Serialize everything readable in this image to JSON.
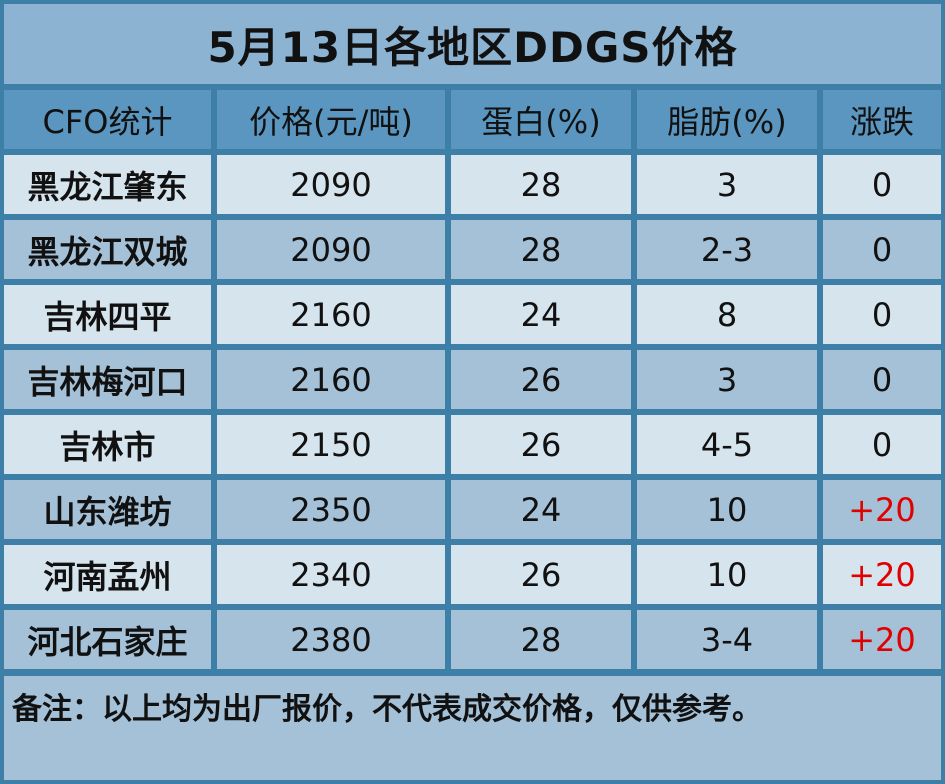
{
  "title": "5月13日各地区DDGS价格",
  "headers": [
    "CFO统计",
    "价格(元/吨)",
    "蛋白(%)",
    "脂肪(%)",
    "涨跌"
  ],
  "rows": [
    {
      "region": "黑龙江肇东",
      "price": "2090",
      "protein": "28",
      "fat": "3",
      "change": "0"
    },
    {
      "region": "黑龙江双城",
      "price": "2090",
      "protein": "28",
      "fat": "2-3",
      "change": "0"
    },
    {
      "region": "吉林四平",
      "price": "2160",
      "protein": "24",
      "fat": "8",
      "change": "0"
    },
    {
      "region": "吉林梅河口",
      "price": "2160",
      "protein": "26",
      "fat": "3",
      "change": "0"
    },
    {
      "region": "吉林市",
      "price": "2150",
      "protein": "26",
      "fat": "4-5",
      "change": "0"
    },
    {
      "region": "山东潍坊",
      "price": "2350",
      "protein": "24",
      "fat": "10",
      "change": "+20"
    },
    {
      "region": "河南孟州",
      "price": "2340",
      "protein": "26",
      "fat": "10",
      "change": "+20"
    },
    {
      "region": "河北石家庄",
      "price": "2380",
      "protein": "28",
      "fat": "3-4",
      "change": "+20"
    }
  ],
  "note": "备注：以上均为出厂报价，不代表成交价格，仅供参考。",
  "colors": {
    "frame": "#3e7fa8",
    "title_bg": "#8cb4d2",
    "header_bg": "#5a96c0",
    "row_light": "#d6e4ee",
    "row_dark": "#a4c1d8",
    "rise": "#e00000"
  }
}
